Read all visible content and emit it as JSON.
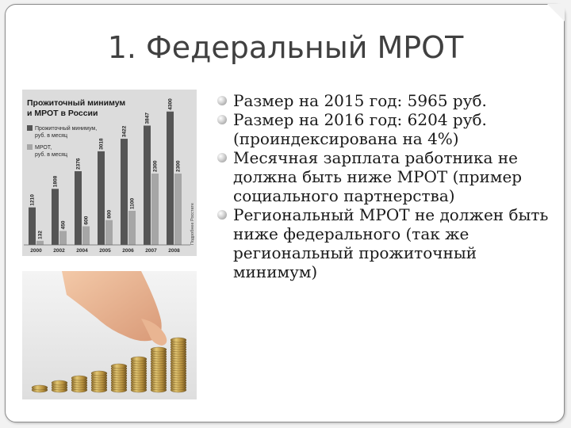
{
  "slide": {
    "title": "1. Федеральный МРОТ",
    "bullets": [
      "Размер на 2015 год: 5965 руб.",
      "Размер на 2016 год: 6204 руб. (проиндексирована на 4%)",
      "Месячная зарплата работника не должна быть ниже МРОТ (пример социального партнерства)",
      "Региональный МРОТ не должен быть ниже федерального (так же региональный прожиточный минимум)"
    ]
  },
  "chart_data": {
    "type": "bar",
    "title": "Прожиточный минимум и МРОТ в России",
    "legend": [
      "Прожиточный минимум, руб. в месяц",
      "МРОТ, руб. в месяц"
    ],
    "source_note": "Подробнее Росстате",
    "categories": [
      "2000",
      "2002",
      "2004",
      "2005",
      "2006",
      "2007",
      "2008"
    ],
    "series": [
      {
        "name": "Прожиточный минимум, руб. в месяц",
        "values": [
          1210,
          1808,
          2376,
          3018,
          3422,
          3847,
          4300
        ]
      },
      {
        "name": "МРОТ, руб. в месяц",
        "values": [
          132,
          450,
          600,
          800,
          1100,
          2300,
          2300
        ]
      }
    ],
    "ylim": [
      0,
      4600
    ],
    "colors": {
      "subsistence": "#555555",
      "minwage": "#a6a6a6"
    }
  }
}
